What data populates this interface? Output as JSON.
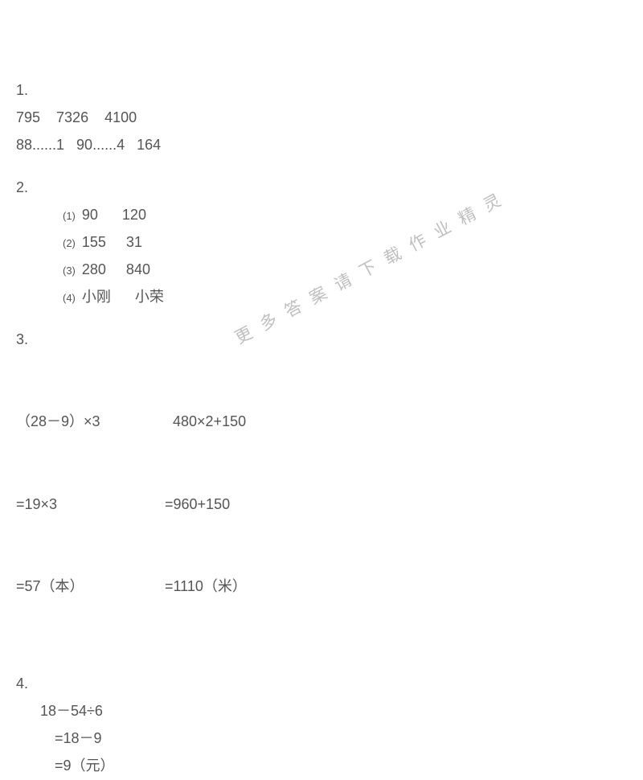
{
  "text_color": "#555555",
  "background_color": "#ffffff",
  "watermark_color": "#bfbfbf",
  "base_fontsize": 18,
  "submarker_fontsize": 13,
  "watermark_fontsize": 21,
  "watermark_rotation_deg": -28,
  "watermark_text": "更多答案请下载作业精灵",
  "sections": {
    "s1": {
      "num": "1.",
      "line1": "795    7326    4100",
      "line2": "88......1   90......4   164"
    },
    "s2": {
      "num": "2.",
      "items": [
        {
          "marker": "(1)",
          "text": "90      120"
        },
        {
          "marker": "(2)",
          "text": "155     31"
        },
        {
          "marker": "(3)",
          "text": "280     840"
        },
        {
          "marker": "(4)",
          "text": "小刚      小荣"
        }
      ]
    },
    "s3": {
      "num": "3.",
      "col1": {
        "r1": "（28－9）×3",
        "r2": "=19×3",
        "r3": "=57（本）"
      },
      "col2": {
        "r1": "  480×2+150",
        "r2": "=960+150",
        "r3": "=1110（米）"
      }
    },
    "s4": {
      "num": "4.",
      "r1": "18－54÷6",
      "r2": "=18－9",
      "r3": "=9（元）"
    }
  }
}
